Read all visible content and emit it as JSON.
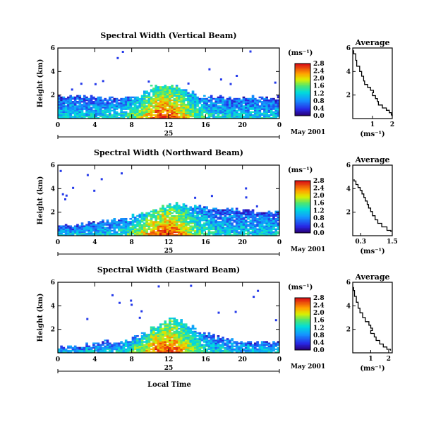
{
  "chart_data": [
    {
      "type": "heatmap",
      "title": "Spectral Width (Vertical Beam)",
      "ylabel": "Height (km)",
      "ylim": [
        0,
        6
      ],
      "yticks": [
        "2",
        "4",
        "6"
      ],
      "xlim": [
        0,
        24
      ],
      "xticks": [
        "0",
        "4",
        "8",
        "12",
        "16",
        "20",
        "0"
      ],
      "day_label": "25",
      "date_label": "May 2001",
      "colorbar": {
        "unit": "(ms⁻¹)",
        "range": [
          0,
          2.8
        ],
        "ticks": [
          "0.0",
          "0.4",
          "0.8",
          "1.2",
          "1.6",
          "2.0",
          "2.4",
          "2.8"
        ]
      },
      "echo_top_km": [
        1.9,
        1.9,
        1.9,
        1.8,
        1.8,
        1.8,
        1.8,
        1.8,
        1.8,
        2.2,
        2.8,
        2.8,
        2.8,
        2.6,
        2.2,
        1.8,
        1.8,
        1.8,
        1.8,
        1.8,
        1.8,
        1.8,
        1.8,
        1.8
      ]
    },
    {
      "type": "heatmap",
      "title": "Spectral Width (Northward Beam)",
      "ylabel": "Height (km)",
      "ylim": [
        0,
        6
      ],
      "yticks": [
        "2",
        "4",
        "6"
      ],
      "xlim": [
        0,
        24
      ],
      "xticks": [
        "0",
        "4",
        "8",
        "12",
        "16",
        "20",
        "0"
      ],
      "day_label": "25",
      "date_label": "May 2001",
      "colorbar": {
        "unit": "(ms⁻¹)",
        "range": [
          0,
          2.8
        ],
        "ticks": [
          "0.0",
          "0.4",
          "0.8",
          "1.2",
          "1.6",
          "2.0",
          "2.4",
          "2.8"
        ]
      },
      "echo_top_km": [
        0.9,
        0.9,
        1.0,
        1.1,
        1.2,
        1.3,
        1.4,
        1.5,
        1.8,
        2.0,
        2.2,
        2.5,
        2.8,
        2.7,
        2.5,
        2.5,
        2.4,
        2.3,
        2.3,
        2.2,
        2.2,
        2.1,
        2.1,
        2.1
      ]
    },
    {
      "type": "heatmap",
      "title": "Spectral Width (Eastward Beam)",
      "ylabel": "Height (km)",
      "ylim": [
        0,
        6
      ],
      "yticks": [
        "2",
        "4",
        "6"
      ],
      "xlim": [
        0,
        24
      ],
      "xticks": [
        "0",
        "4",
        "8",
        "12",
        "16",
        "20",
        "0"
      ],
      "day_label": "25",
      "date_label": "May 2001",
      "xlabel": "Local Time",
      "colorbar": {
        "unit": "(ms⁻¹)",
        "range": [
          0,
          2.8
        ],
        "ticks": [
          "0.0",
          "0.4",
          "0.8",
          "1.2",
          "1.6",
          "2.0",
          "2.4",
          "2.8"
        ]
      },
      "echo_top_km": [
        0.5,
        0.6,
        0.6,
        0.7,
        0.8,
        0.9,
        0.9,
        1.0,
        1.4,
        1.8,
        2.2,
        2.6,
        2.9,
        2.7,
        2.2,
        1.8,
        1.6,
        1.3,
        1.2,
        1.1,
        1.0,
        0.9,
        0.9,
        0.8
      ]
    },
    {
      "type": "line",
      "title": "Average",
      "ylim": [
        0,
        6
      ],
      "yticks": [
        "2",
        "4",
        "6"
      ],
      "xlim": [
        0,
        2
      ],
      "xticks": [
        "1",
        "2"
      ],
      "xlabel": "(ms⁻¹)",
      "x": [
        0.05,
        0.15,
        0.2,
        0.35,
        0.45,
        0.55,
        0.6,
        0.75,
        0.9,
        1.05,
        1.0,
        1.15,
        1.25,
        1.3,
        1.5,
        1.7,
        1.85,
        1.95,
        2.0
      ],
      "y": [
        5.8,
        5.2,
        4.7,
        4.2,
        3.8,
        3.4,
        3.0,
        2.8,
        2.5,
        2.3,
        2.1,
        1.8,
        1.6,
        1.3,
        1.0,
        0.8,
        0.6,
        0.4,
        0.2
      ]
    },
    {
      "type": "line",
      "title": "Average",
      "ylim": [
        0,
        6
      ],
      "yticks": [
        "2",
        "4",
        "6"
      ],
      "xlim": [
        0,
        1.5
      ],
      "xticks": [
        "0.3",
        "1.5"
      ],
      "xlabel": "(ms⁻¹)",
      "x": [
        0.05,
        0.12,
        0.2,
        0.28,
        0.35,
        0.42,
        0.48,
        0.55,
        0.6,
        0.68,
        0.75,
        0.85,
        0.95,
        1.1,
        1.3,
        1.45
      ],
      "y": [
        4.8,
        4.5,
        4.2,
        4.0,
        3.7,
        3.4,
        3.1,
        2.8,
        2.5,
        2.2,
        1.9,
        1.5,
        1.2,
        0.9,
        0.6,
        0.3
      ]
    },
    {
      "type": "line",
      "title": "Average",
      "ylim": [
        0,
        6
      ],
      "yticks": [
        "2",
        "4",
        "6"
      ],
      "xlim": [
        0,
        2.2
      ],
      "xticks": [
        "1",
        "2"
      ],
      "xlabel": "(ms⁻¹)",
      "x": [
        0.05,
        0.1,
        0.2,
        0.3,
        0.4,
        0.55,
        0.7,
        0.9,
        1.0,
        1.1,
        1.0,
        1.2,
        1.3,
        1.5,
        1.7,
        1.9,
        2.1
      ],
      "y": [
        5.6,
        5.0,
        4.6,
        4.0,
        3.6,
        3.2,
        2.8,
        2.5,
        2.2,
        2.0,
        1.8,
        1.5,
        1.2,
        0.9,
        0.6,
        0.4,
        0.2
      ]
    }
  ]
}
